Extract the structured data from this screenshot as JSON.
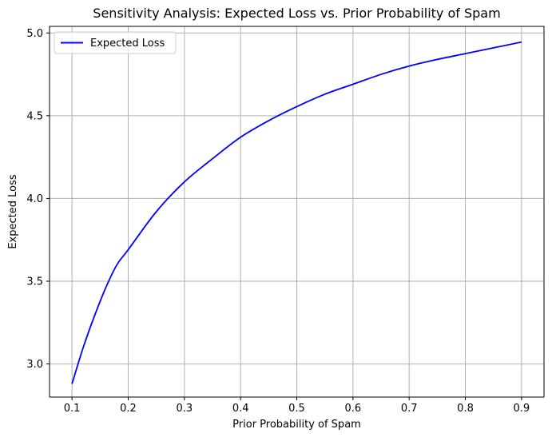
{
  "chart_data": {
    "type": "line",
    "title": "Sensitivity Analysis: Expected Loss vs. Prior Probability of Spam",
    "xlabel": "Prior Probability of Spam",
    "ylabel": "Expected Loss",
    "xlim": [
      0.06,
      0.94
    ],
    "ylim": [
      2.8,
      5.04
    ],
    "xticks": [
      0.1,
      0.2,
      0.3,
      0.4,
      0.5,
      0.6,
      0.7,
      0.8,
      0.9
    ],
    "xtick_labels": [
      "0.1",
      "0.2",
      "0.3",
      "0.4",
      "0.5",
      "0.6",
      "0.7",
      "0.8",
      "0.9"
    ],
    "yticks": [
      3.0,
      3.5,
      4.0,
      4.5,
      5.0
    ],
    "ytick_labels": [
      "3.0",
      "3.5",
      "4.0",
      "4.5",
      "5.0"
    ],
    "grid": true,
    "legend_position": "upper-left",
    "series": [
      {
        "name": "Expected Loss",
        "color": "#0000ff",
        "x": [
          0.1,
          0.12,
          0.14,
          0.16,
          0.18,
          0.2,
          0.25,
          0.3,
          0.35,
          0.4,
          0.45,
          0.5,
          0.55,
          0.6,
          0.65,
          0.7,
          0.75,
          0.8,
          0.85,
          0.9
        ],
        "y": [
          2.88,
          3.1,
          3.29,
          3.46,
          3.6,
          3.69,
          3.92,
          4.1,
          4.24,
          4.37,
          4.47,
          4.555,
          4.63,
          4.69,
          4.75,
          4.8,
          4.84,
          4.875,
          4.91,
          4.945
        ]
      }
    ]
  }
}
